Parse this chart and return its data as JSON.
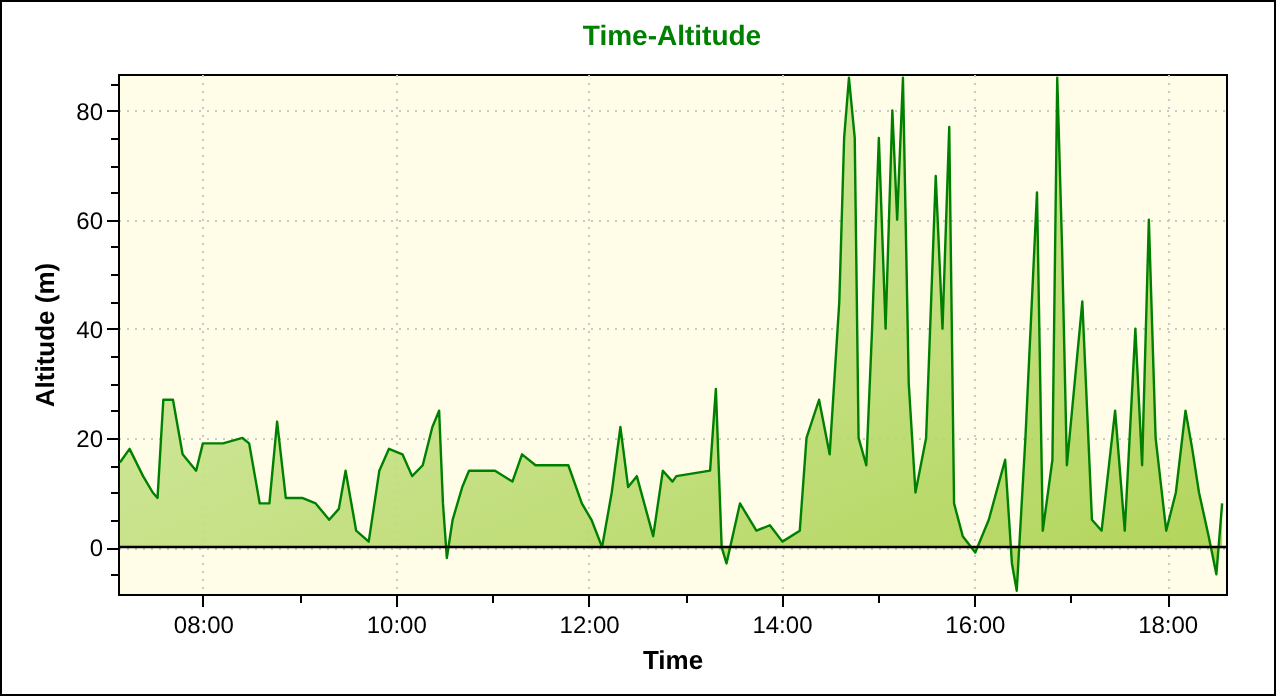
{
  "chart_data": {
    "type": "area",
    "title": "Time-Altitude",
    "xlabel": "Time",
    "ylabel": "Altitude (m)",
    "x": [
      7.14,
      7.24,
      7.38,
      7.48,
      7.53,
      7.59,
      7.69,
      7.79,
      7.93,
      8.0,
      8.21,
      8.41,
      8.48,
      8.59,
      8.69,
      8.77,
      8.86,
      9.03,
      9.17,
      9.31,
      9.41,
      9.48,
      9.59,
      9.72,
      9.83,
      9.93,
      10.07,
      10.17,
      10.28,
      10.38,
      10.45,
      10.49,
      10.53,
      10.59,
      10.69,
      10.76,
      11.03,
      11.21,
      11.31,
      11.45,
      11.79,
      11.93,
      12.03,
      12.14,
      12.24,
      12.33,
      12.41,
      12.5,
      12.67,
      12.77,
      12.87,
      12.91,
      13.26,
      13.32,
      13.38,
      13.43,
      13.57,
      13.74,
      13.88,
      14.01,
      14.19,
      14.26,
      14.39,
      14.5,
      14.6,
      14.65,
      14.7,
      14.76,
      14.8,
      14.88,
      14.94,
      15.01,
      15.08,
      15.15,
      15.2,
      15.26,
      15.32,
      15.39,
      15.5,
      15.6,
      15.67,
      15.74,
      15.79,
      15.88,
      16.01,
      16.15,
      16.32,
      16.39,
      16.44,
      16.53,
      16.65,
      16.71,
      16.81,
      16.86,
      16.91,
      16.96,
      17.12,
      17.22,
      17.32,
      17.46,
      17.56,
      17.67,
      17.74,
      17.81,
      17.88,
      17.99,
      18.09,
      18.19,
      18.26,
      18.33,
      18.43,
      18.51,
      18.57
    ],
    "series": [
      {
        "color": "#008000",
        "values": [
          15.5,
          18,
          13,
          10,
          9,
          27,
          27,
          17,
          14,
          19,
          19,
          20,
          19,
          8,
          8,
          23,
          9,
          9,
          8,
          5,
          7,
          14,
          3,
          1,
          14,
          18,
          17,
          13,
          15,
          22,
          25,
          8,
          -2,
          5,
          11,
          14,
          14,
          12,
          17,
          15,
          15,
          8,
          5,
          0,
          10,
          22,
          11,
          13,
          2,
          14,
          12,
          13,
          14,
          29,
          0,
          -3,
          8,
          3,
          4,
          1,
          3,
          20,
          27,
          17,
          45,
          75,
          86,
          75,
          20,
          15,
          40,
          75,
          40,
          80,
          60,
          86,
          30,
          10,
          20,
          68,
          40,
          77,
          8,
          2,
          -1,
          5,
          16,
          -3,
          -8,
          20,
          65,
          3,
          16,
          86,
          55,
          15,
          45,
          5,
          3,
          25,
          3,
          40,
          15,
          60,
          20,
          3,
          10,
          25,
          18,
          10,
          2,
          -5,
          8
        ]
      }
    ],
    "xlim": [
      7.12,
      18.61
    ],
    "xticks": [
      {
        "value": 8,
        "label": "08:00"
      },
      {
        "value": 9,
        "label": null
      },
      {
        "value": 10,
        "label": "10:00"
      },
      {
        "value": 11,
        "label": null
      },
      {
        "value": 12,
        "label": "12:00"
      },
      {
        "value": 13,
        "label": null
      },
      {
        "value": 14,
        "label": "14:00"
      },
      {
        "value": 15,
        "label": null
      },
      {
        "value": 16,
        "label": "16:00"
      },
      {
        "value": 17,
        "label": null
      },
      {
        "value": 18,
        "label": "18:00"
      }
    ],
    "ylim": [
      -8.6,
      86.7
    ],
    "yticks": [
      {
        "value": -5,
        "label": null
      },
      0,
      {
        "value": 5,
        "label": null
      },
      {
        "value": 10,
        "label": null
      },
      {
        "value": 15,
        "label": null
      },
      20,
      {
        "value": 25,
        "label": null
      },
      {
        "value": 30,
        "label": null
      },
      {
        "value": 35,
        "label": null
      },
      40,
      {
        "value": 45,
        "label": null
      },
      {
        "value": 50,
        "label": null
      },
      {
        "value": 55,
        "label": null
      },
      60,
      {
        "value": 65,
        "label": null
      },
      {
        "value": 70,
        "label": null
      },
      {
        "value": 75,
        "label": null
      },
      80,
      {
        "value": 85,
        "label": null
      }
    ],
    "grid": true,
    "ref_lines": [
      {
        "axis": "y",
        "value": 0,
        "color": "#000000"
      }
    ]
  }
}
